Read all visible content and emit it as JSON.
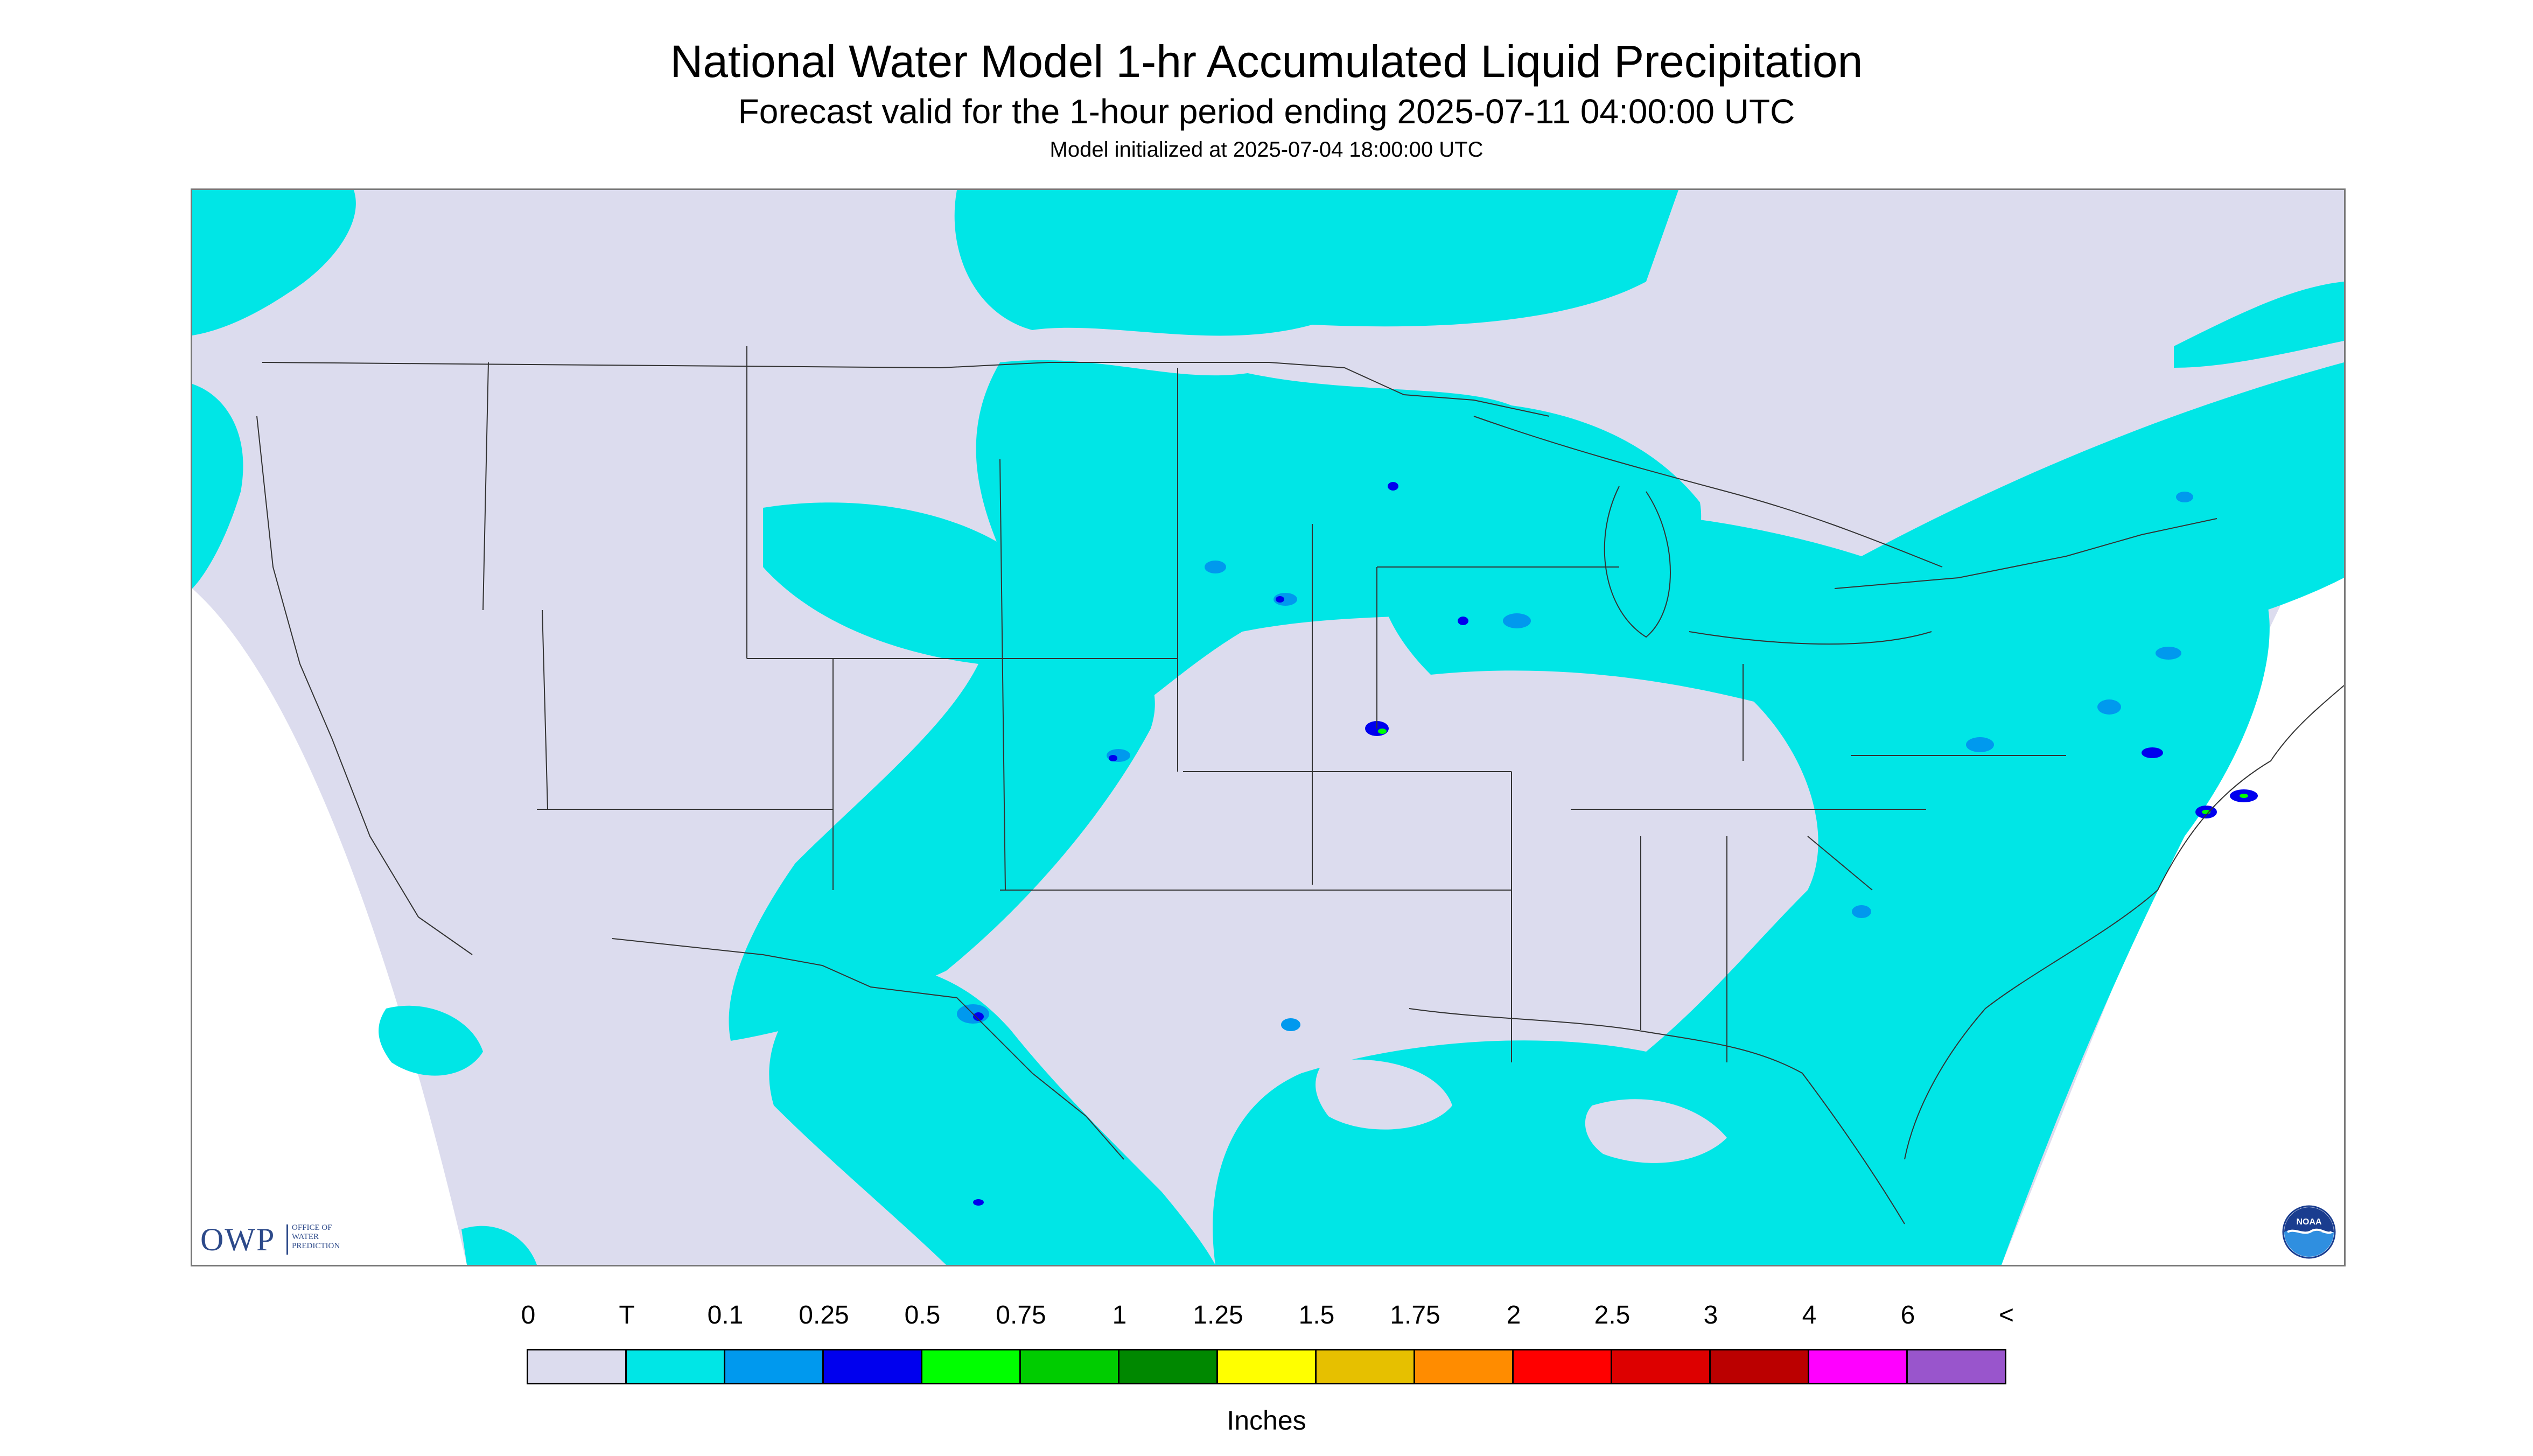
{
  "title": "National Water Model 1-hr Accumulated Liquid Precipitation",
  "subtitle": "Forecast valid for the 1-hour period ending 2025-07-11 04:00:00 UTC",
  "init_text": "Model initialized at 2025-07-04 18:00:00 UTC",
  "logo_owp": {
    "letters": "OWP",
    "line1": "OFFICE OF",
    "line2": "WATER",
    "line3": "PREDICTION"
  },
  "logo_noaa": {
    "text": "NOAA"
  },
  "legend": {
    "units": "Inches",
    "boundary_labels": [
      "0",
      "T",
      "0.1",
      "0.25",
      "0.5",
      "0.75",
      "1",
      "1.25",
      "1.5",
      "1.75",
      "2",
      "2.5",
      "3",
      "4",
      "6",
      "<"
    ],
    "colors": [
      "#dcdcee",
      "#00e6e6",
      "#0099ee",
      "#0000ee",
      "#00ff00",
      "#00cc00",
      "#008800",
      "#ffff00",
      "#e6c000",
      "#ff8c00",
      "#ff0000",
      "#dd0000",
      "#bb0000",
      "#ff00ff",
      "#9955cc"
    ]
  },
  "map_colors": {
    "background": "#dcdcee",
    "trace": "#00e6e6",
    "light": "#0099ee",
    "medium": "#0000ee",
    "heavy": "#00ff00",
    "boundary": "#333333"
  }
}
